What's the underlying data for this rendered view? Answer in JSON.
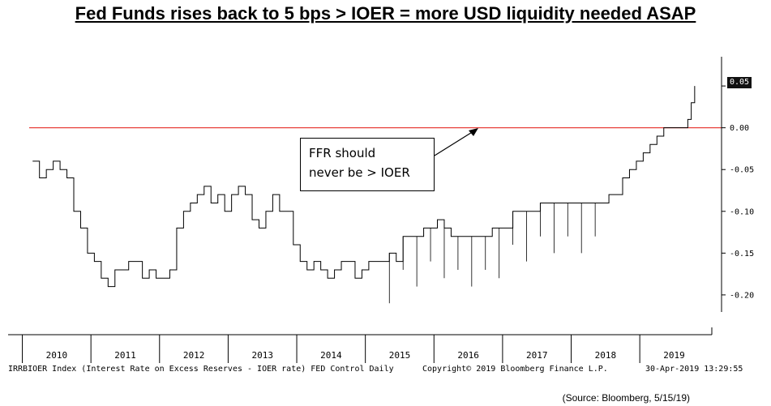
{
  "title": "Fed Funds rises back to 5 bps > IOER = more USD liquidity needed ASAP",
  "source": "(Source: Bloomberg, 5/15/19)",
  "footer": {
    "left": "IRRBIOER Index (Interest Rate on Excess Reserves - IOER rate) FED Control  Daily",
    "center": "Copyright© 2019 Bloomberg Finance L.P.",
    "right": "30-Apr-2019 13:29:55"
  },
  "annotation": {
    "line1": "FFR should",
    "line2": "never be > IOER"
  },
  "last_value_label": "0.05",
  "colors": {
    "series": "#000000",
    "zero_line": "#e8413c",
    "background": "#ffffff"
  },
  "chart_data": {
    "type": "line",
    "title": "Fed Funds rises back to 5 bps > IOER = more USD liquidity needed ASAP",
    "xlabel": "",
    "ylabel": "",
    "ylim": [
      -0.235,
      0.085
    ],
    "xlim": [
      2009.6,
      2019.55
    ],
    "y_ticks": [
      0.05,
      0.0,
      -0.05,
      -0.1,
      -0.15,
      -0.2
    ],
    "y_tick_labels": [
      "0.05",
      "0.00",
      "-0.05",
      "-0.10",
      "-0.15",
      "-0.20"
    ],
    "x_ticks": [
      2010,
      2011,
      2012,
      2013,
      2014,
      2015,
      2016,
      2017,
      2018,
      2019
    ],
    "x_tick_labels": [
      "2010",
      "2011",
      "2012",
      "2013",
      "2014",
      "2015",
      "2016",
      "2017",
      "2018",
      "2019"
    ],
    "reference_line": {
      "y": 0.0,
      "color": "#e8413c"
    },
    "series": [
      {
        "x": [
          2009.65,
          2009.75,
          2009.85,
          2009.95,
          2010.05,
          2010.15,
          2010.25,
          2010.35,
          2010.45,
          2010.55,
          2010.65,
          2010.75,
          2010.85,
          2010.95,
          2011.05,
          2011.15,
          2011.25,
          2011.35,
          2011.45,
          2011.55,
          2011.65,
          2011.75,
          2011.85,
          2011.95,
          2012.05,
          2012.15,
          2012.25,
          2012.35,
          2012.45,
          2012.55,
          2012.65,
          2012.75,
          2012.85,
          2012.95,
          2013.05,
          2013.15,
          2013.25,
          2013.35,
          2013.45,
          2013.55,
          2013.65,
          2013.75,
          2013.85,
          2013.95,
          2014.05,
          2014.15,
          2014.25,
          2014.35,
          2014.45,
          2014.55,
          2014.65,
          2014.75,
          2014.85,
          2014.95,
          2015.05,
          2015.15,
          2015.25,
          2015.35,
          2015.45,
          2015.55,
          2015.65,
          2015.75,
          2015.85,
          2015.95,
          2016.05,
          2016.15,
          2016.25,
          2016.35,
          2016.45,
          2016.55,
          2016.65,
          2016.75,
          2016.85,
          2016.95,
          2017.05,
          2017.15,
          2017.25,
          2017.35,
          2017.45,
          2017.55,
          2017.65,
          2017.75,
          2017.85,
          2017.95,
          2018.05,
          2018.15,
          2018.25,
          2018.35,
          2018.45,
          2018.55,
          2018.65,
          2018.75,
          2018.85,
          2018.95,
          2019.0,
          2019.05,
          2019.1,
          2019.15,
          2019.2,
          2019.25,
          2019.3
        ],
        "y": [
          -0.04,
          -0.06,
          -0.05,
          -0.04,
          -0.05,
          -0.06,
          -0.1,
          -0.12,
          -0.15,
          -0.16,
          -0.18,
          -0.19,
          -0.17,
          -0.17,
          -0.16,
          -0.16,
          -0.18,
          -0.17,
          -0.18,
          -0.18,
          -0.17,
          -0.12,
          -0.1,
          -0.09,
          -0.08,
          -0.07,
          -0.09,
          -0.08,
          -0.1,
          -0.08,
          -0.07,
          -0.08,
          -0.11,
          -0.12,
          -0.1,
          -0.08,
          -0.1,
          -0.1,
          -0.14,
          -0.16,
          -0.17,
          -0.16,
          -0.17,
          -0.18,
          -0.17,
          -0.16,
          -0.16,
          -0.18,
          -0.17,
          -0.16,
          -0.16,
          -0.16,
          -0.15,
          -0.16,
          -0.13,
          -0.13,
          -0.13,
          -0.12,
          -0.12,
          -0.11,
          -0.12,
          -0.13,
          -0.13,
          -0.13,
          -0.13,
          -0.13,
          -0.13,
          -0.12,
          -0.12,
          -0.12,
          -0.1,
          -0.1,
          -0.1,
          -0.1,
          -0.09,
          -0.09,
          -0.09,
          -0.09,
          -0.09,
          -0.09,
          -0.09,
          -0.09,
          -0.09,
          -0.09,
          -0.08,
          -0.08,
          -0.06,
          -0.05,
          -0.04,
          -0.03,
          -0.02,
          -0.01,
          0.0,
          0.0,
          0.0,
          0.0,
          0.0,
          0.0,
          0.01,
          0.03,
          0.05
        ]
      }
    ]
  }
}
